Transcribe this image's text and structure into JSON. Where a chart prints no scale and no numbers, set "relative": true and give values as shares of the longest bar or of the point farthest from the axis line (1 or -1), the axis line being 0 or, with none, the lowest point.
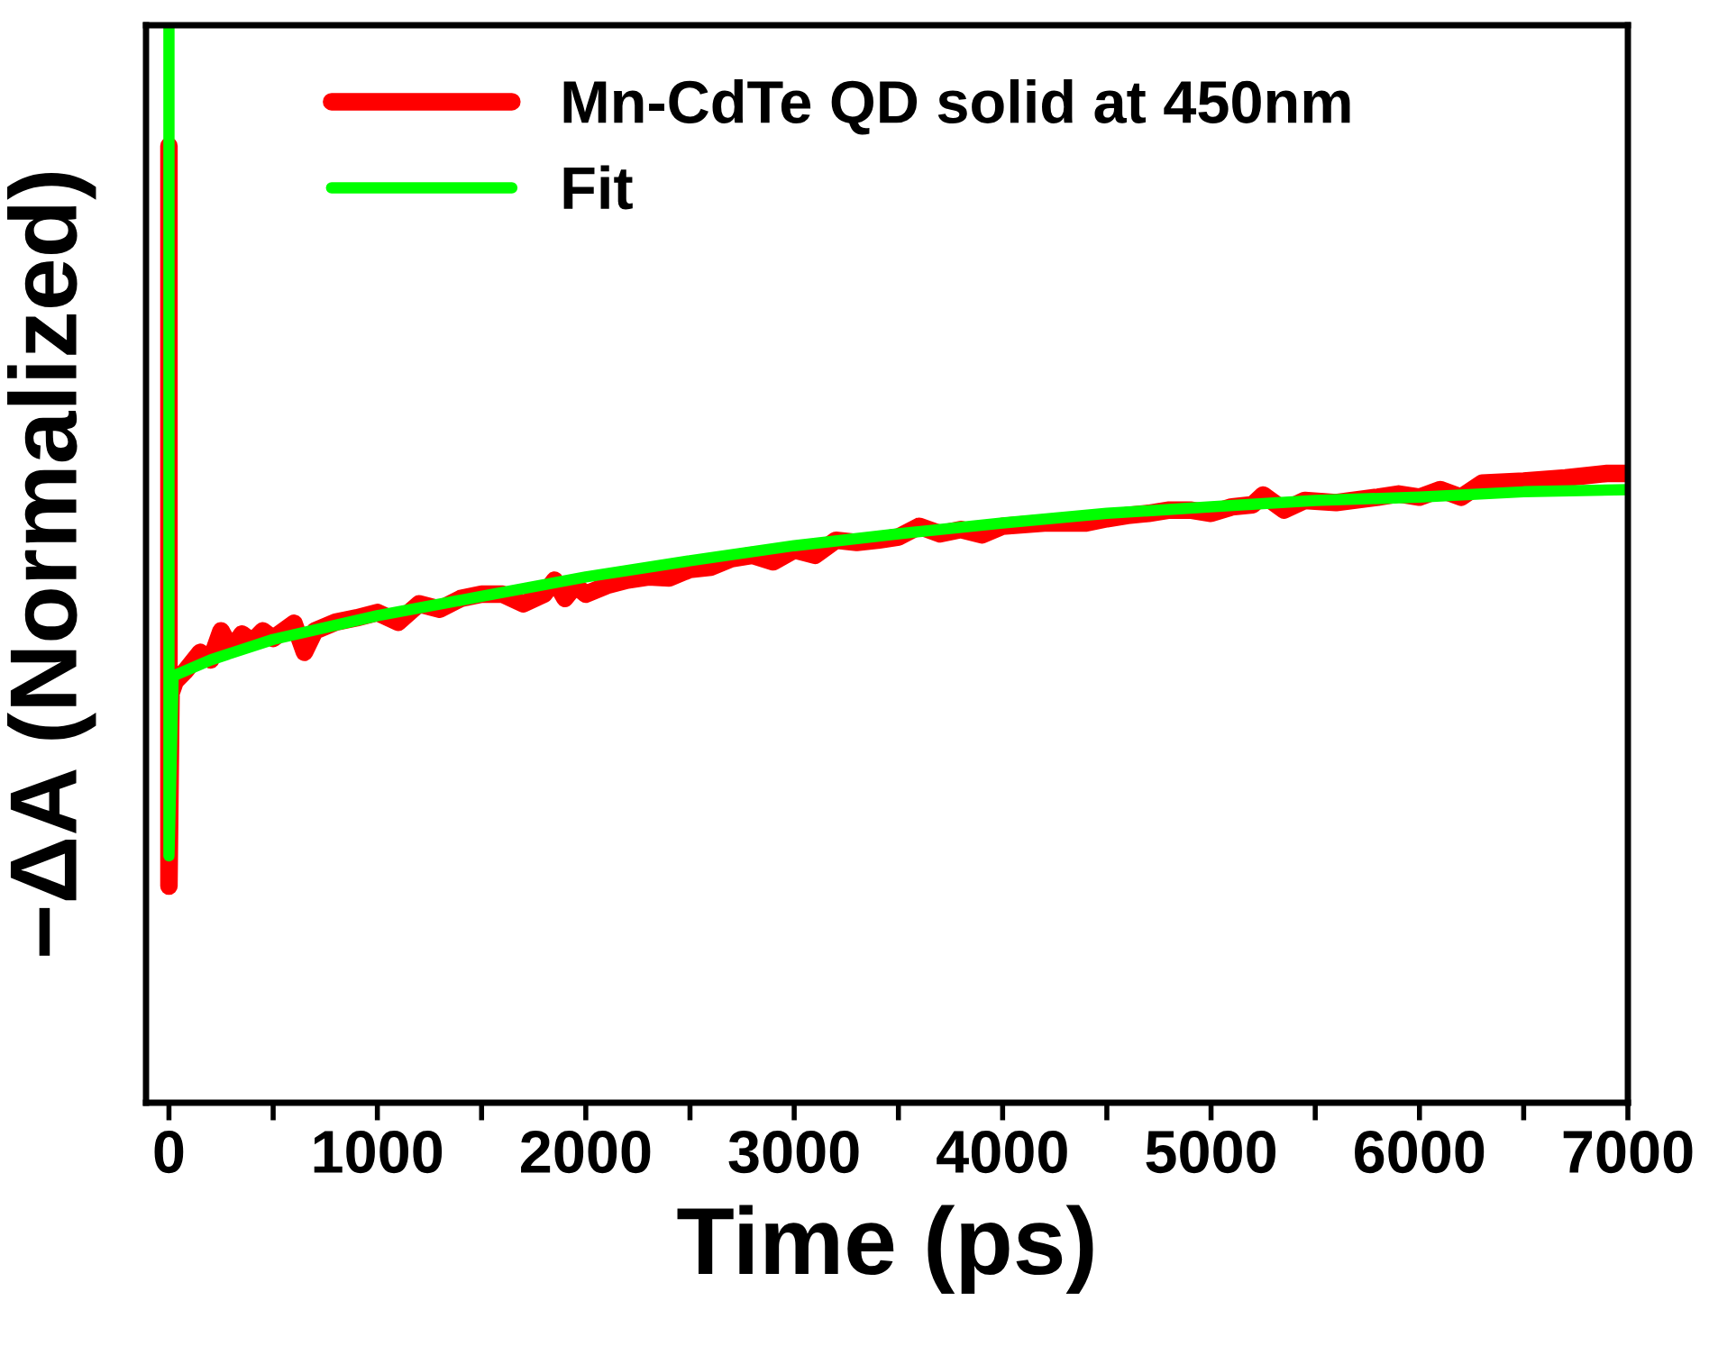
{
  "chart_data": {
    "type": "line",
    "xlabel": "Time (ps)",
    "ylabel": "−ΔA (Normalized)",
    "relative": true,
    "xlim": [
      -110,
      7000
    ],
    "xticks": [
      0,
      {
        "value": 500,
        "label": null
      },
      1000,
      {
        "value": 1500,
        "label": null
      },
      2000,
      {
        "value": 2500,
        "label": null
      },
      3000,
      {
        "value": 3500,
        "label": null
      },
      4000,
      {
        "value": 4500,
        "label": null
      },
      5000,
      {
        "value": 5500,
        "label": null
      },
      6000,
      {
        "value": 6500,
        "label": null
      },
      7000
    ],
    "legend": "top",
    "grid": false,
    "series": [
      {
        "name": "Mn-CdTe QD solid at 450nm",
        "color": "#ff0000",
        "x": [
          0,
          0,
          0,
          10,
          30,
          80,
          150,
          200,
          250,
          300,
          350,
          400,
          450,
          500,
          600,
          650,
          700,
          800,
          900,
          1000,
          1100,
          1200,
          1300,
          1400,
          1500,
          1600,
          1700,
          1800,
          1850,
          1900,
          1950,
          2000,
          2100,
          2200,
          2300,
          2400,
          2500,
          2600,
          2700,
          2800,
          2900,
          3000,
          3100,
          3200,
          3300,
          3400,
          3500,
          3600,
          3700,
          3800,
          3900,
          4000,
          4200,
          4400,
          4500,
          4600,
          4700,
          4800,
          4900,
          5000,
          5100,
          5200,
          5250,
          5350,
          5450,
          5600,
          5800,
          5900,
          6000,
          6100,
          6200,
          6300,
          6500,
          6700,
          6900,
          7000
        ],
        "values": [
          0.888,
          0.201,
          0.201,
          0.38,
          0.391,
          0.401,
          0.418,
          0.411,
          0.438,
          0.421,
          0.435,
          0.428,
          0.438,
          0.431,
          0.445,
          0.418,
          0.438,
          0.446,
          0.45,
          0.455,
          0.446,
          0.463,
          0.458,
          0.468,
          0.472,
          0.472,
          0.463,
          0.472,
          0.485,
          0.468,
          0.48,
          0.472,
          0.48,
          0.485,
          0.488,
          0.487,
          0.495,
          0.497,
          0.505,
          0.508,
          0.502,
          0.513,
          0.508,
          0.522,
          0.52,
          0.522,
          0.525,
          0.535,
          0.528,
          0.532,
          0.527,
          0.535,
          0.538,
          0.538,
          0.542,
          0.545,
          0.547,
          0.55,
          0.55,
          0.547,
          0.553,
          0.555,
          0.564,
          0.55,
          0.559,
          0.557,
          0.562,
          0.565,
          0.562,
          0.569,
          0.562,
          0.575,
          0.577,
          0.58,
          0.584,
          0.584
        ]
      },
      {
        "name": "Fit",
        "color": "#00ff00",
        "x": [
          0,
          0,
          20,
          200,
          500,
          1000,
          1500,
          2000,
          2500,
          3000,
          3500,
          4000,
          4500,
          5000,
          5500,
          6000,
          6500,
          7000
        ],
        "values": [
          1.0,
          0.229,
          0.396,
          0.411,
          0.43,
          0.452,
          0.47,
          0.488,
          0.503,
          0.517,
          0.528,
          0.538,
          0.547,
          0.553,
          0.559,
          0.562,
          0.567,
          0.569
        ]
      }
    ]
  }
}
